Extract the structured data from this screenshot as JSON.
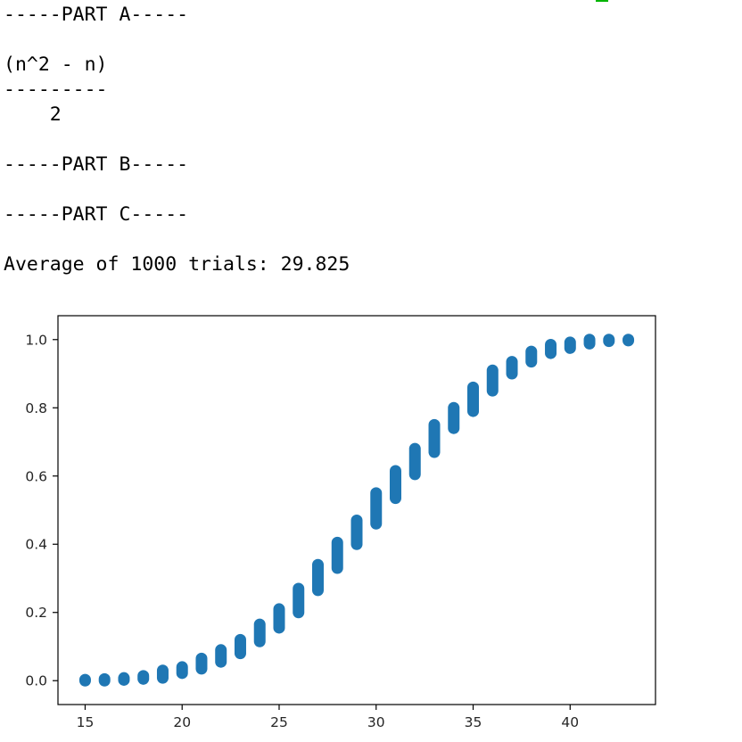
{
  "output": {
    "part_a_header": "-----PART A-----",
    "formula_numerator": "(n^2 - n)",
    "formula_bar": "---------",
    "formula_denominator": "    2",
    "part_b_header": "-----PART B-----",
    "part_c_header": "-----PART C-----",
    "average_line": "Average of 1000 trials: 29.825"
  },
  "colors": {
    "point": "#1f77b4",
    "cursor": "#00b400",
    "axis": "#000000",
    "text": "#000000"
  },
  "chart_data": {
    "type": "scatter",
    "xlim": [
      13.6,
      44.4
    ],
    "ylim": [
      -0.07,
      1.07
    ],
    "xticks": [
      15,
      20,
      25,
      30,
      35,
      40
    ],
    "yticks": [
      0.0,
      0.2,
      0.4,
      0.6,
      0.8,
      1.0
    ],
    "ytick_labels": [
      "0.0",
      "0.2",
      "0.4",
      "0.6",
      "0.8",
      "1.0"
    ],
    "grid": false,
    "points": [
      {
        "x": 15,
        "y_min": 0.0,
        "y_max": 0.003
      },
      {
        "x": 16,
        "y_min": 0.0,
        "y_max": 0.005
      },
      {
        "x": 17,
        "y_min": 0.002,
        "y_max": 0.008
      },
      {
        "x": 18,
        "y_min": 0.005,
        "y_max": 0.014
      },
      {
        "x": 19,
        "y_min": 0.008,
        "y_max": 0.03
      },
      {
        "x": 20,
        "y_min": 0.022,
        "y_max": 0.04
      },
      {
        "x": 21,
        "y_min": 0.035,
        "y_max": 0.065
      },
      {
        "x": 22,
        "y_min": 0.055,
        "y_max": 0.09
      },
      {
        "x": 23,
        "y_min": 0.08,
        "y_max": 0.12
      },
      {
        "x": 24,
        "y_min": 0.115,
        "y_max": 0.165
      },
      {
        "x": 25,
        "y_min": 0.155,
        "y_max": 0.21
      },
      {
        "x": 26,
        "y_min": 0.2,
        "y_max": 0.27
      },
      {
        "x": 27,
        "y_min": 0.265,
        "y_max": 0.34
      },
      {
        "x": 28,
        "y_min": 0.33,
        "y_max": 0.405
      },
      {
        "x": 29,
        "y_min": 0.4,
        "y_max": 0.47
      },
      {
        "x": 30,
        "y_min": 0.46,
        "y_max": 0.55
      },
      {
        "x": 31,
        "y_min": 0.535,
        "y_max": 0.615
      },
      {
        "x": 32,
        "y_min": 0.605,
        "y_max": 0.68
      },
      {
        "x": 33,
        "y_min": 0.67,
        "y_max": 0.75
      },
      {
        "x": 34,
        "y_min": 0.74,
        "y_max": 0.8
      },
      {
        "x": 35,
        "y_min": 0.79,
        "y_max": 0.86
      },
      {
        "x": 36,
        "y_min": 0.85,
        "y_max": 0.91
      },
      {
        "x": 37,
        "y_min": 0.9,
        "y_max": 0.935
      },
      {
        "x": 38,
        "y_min": 0.935,
        "y_max": 0.965
      },
      {
        "x": 39,
        "y_min": 0.96,
        "y_max": 0.985
      },
      {
        "x": 40,
        "y_min": 0.975,
        "y_max": 0.992
      },
      {
        "x": 41,
        "y_min": 0.988,
        "y_max": 1.0
      },
      {
        "x": 42,
        "y_min": 0.995,
        "y_max": 1.0
      },
      {
        "x": 43,
        "y_min": 0.997,
        "y_max": 1.0
      }
    ]
  }
}
